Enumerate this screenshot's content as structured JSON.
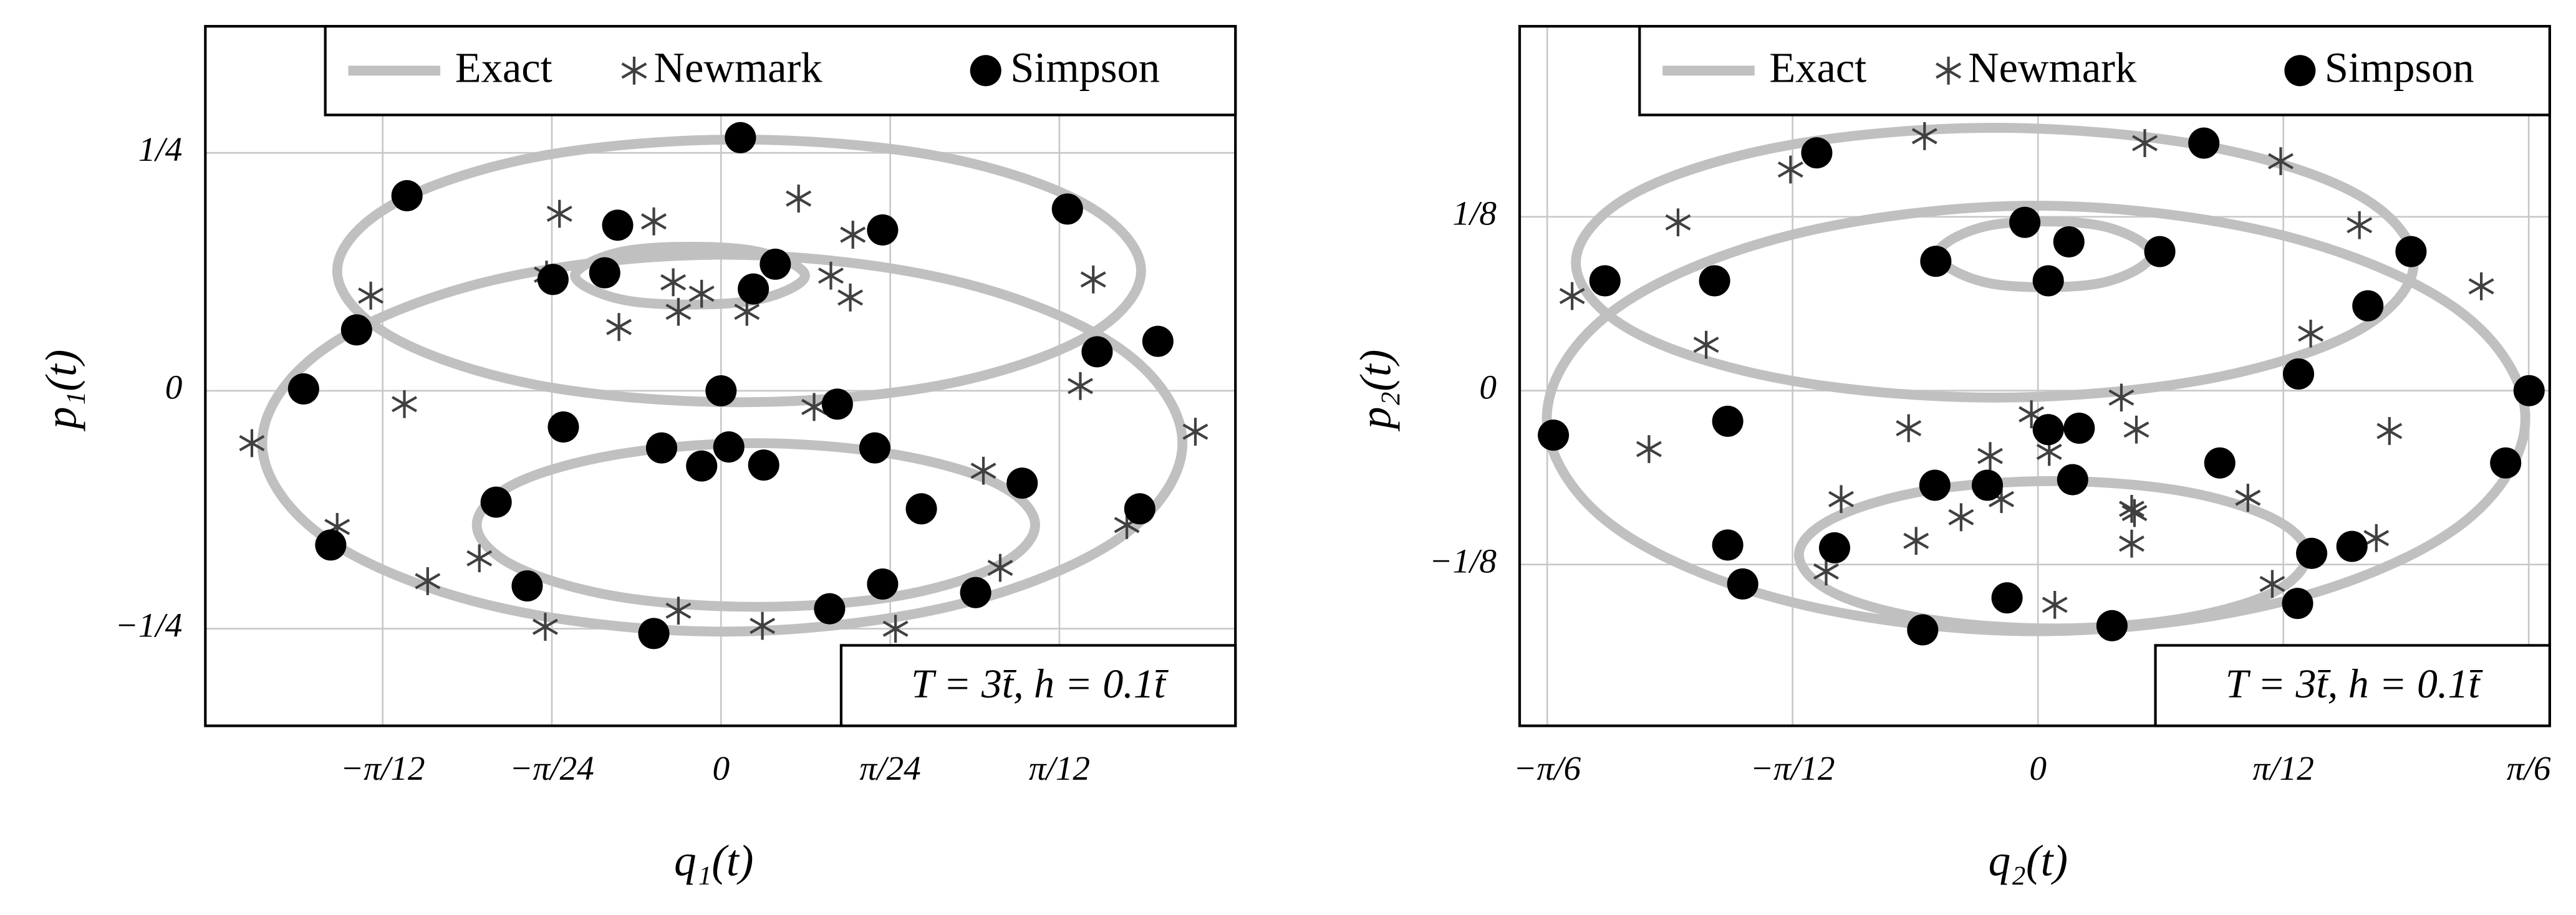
{
  "chart_data": [
    {
      "type": "line",
      "xlabel": "q₁(t)",
      "ylabel": "p₁(t)",
      "annotation": "T = 3t̄, h = 0.1t̄",
      "xlim": [
        -0.399,
        0.398
      ],
      "ylim": [
        -0.352,
        0.383
      ],
      "xticks": [
        {
          "value": -0.2618,
          "label": "−π/12"
        },
        {
          "value": -0.1309,
          "label": "−π/24"
        },
        0,
        {
          "value": 0.1309,
          "label": "π/24"
        },
        {
          "value": 0.2618,
          "label": "π/12"
        }
      ],
      "yticks": [
        {
          "value": -0.25,
          "label": "−1/4"
        },
        0,
        {
          "value": 0.25,
          "label": "1/4"
        }
      ],
      "grid": true,
      "legend": "upper right",
      "series": [
        {
          "name": "Exact",
          "color": "#c0c0c0",
          "marker": "line",
          "x": [
            0.325,
            0.283,
            0.17,
            0.014,
            -0.142,
            -0.255,
            -0.297,
            -0.255,
            -0.142,
            0.014,
            0.17,
            0.283,
            null,
            0.357,
            0.309,
            0.179,
            0.001,
            -0.177,
            -0.307,
            -0.355,
            -0.307,
            -0.177,
            0.001,
            0.179,
            0.309,
            null,
            0.243,
            0.214,
            0.135,
            0.027,
            -0.081,
            -0.16,
            -0.189,
            -0.16,
            -0.081,
            0.027,
            0.135,
            0.214,
            null,
            0.065,
            0.021,
            -0.069,
            -0.113,
            -0.069,
            0.021
          ],
          "values": [
            0.126,
            0.195,
            0.246,
            0.264,
            0.246,
            0.195,
            0.126,
            0.057,
            0.006,
            -0.012,
            0.006,
            0.057,
            null,
            -0.055,
            0.044,
            0.116,
            0.143,
            0.116,
            0.044,
            -0.055,
            -0.154,
            -0.226,
            -0.253,
            -0.226,
            -0.154,
            null,
            -0.141,
            -0.098,
            -0.067,
            -0.055,
            -0.067,
            -0.098,
            -0.141,
            -0.184,
            -0.216,
            -0.227,
            -0.216,
            -0.184,
            null,
            0.121,
            0.148,
            0.148,
            0.121,
            0.094,
            0.094
          ]
        },
        {
          "name": "Newmark",
          "color": "#404040",
          "marker": "asterisk",
          "x": [
            -0.125,
            -0.052,
            0.06,
            0.102,
            -0.135,
            -0.037,
            -0.015,
            0.085,
            0.1,
            -0.033,
            0.02,
            -0.079,
            -0.271,
            0.288,
            0.278,
            -0.245,
            0.072,
            -0.363,
            0.367,
            0.203,
            -0.297,
            -0.187,
            -0.227,
            0.314,
            0.216,
            -0.136,
            -0.033,
            0.032,
            0.135
          ],
          "values": [
            0.186,
            0.178,
            0.202,
            0.164,
            0.122,
            0.114,
            0.102,
            0.121,
            0.098,
            0.083,
            0.083,
            0.067,
            0.1,
            0.117,
            0.005,
            -0.014,
            -0.017,
            -0.055,
            -0.043,
            -0.084,
            -0.143,
            -0.176,
            -0.2,
            -0.141,
            -0.186,
            -0.248,
            -0.231,
            -0.247,
            -0.25
          ]
        },
        {
          "name": "Simpson",
          "color": "#000000",
          "marker": "circle",
          "x": [
            0.015,
            -0.243,
            0.268,
            -0.08,
            0.125,
            0.042,
            -0.09,
            -0.13,
            0.025,
            -0.282,
            0.338,
            0.291,
            -0.323,
            0,
            0.09,
            -0.122,
            -0.046,
            0.006,
            -0.015,
            0.033,
            0.119,
            0.233,
            -0.174,
            0.155,
            0.324,
            -0.302,
            -0.15,
            0.125,
            0.197,
            0.084,
            -0.052
          ],
          "values": [
            0.266,
            0.205,
            0.191,
            0.174,
            0.169,
            0.133,
            0.124,
            0.117,
            0.107,
            0.064,
            0.052,
            0.041,
            0.002,
            0,
            -0.014,
            -0.038,
            -0.06,
            -0.059,
            -0.079,
            -0.078,
            -0.06,
            -0.097,
            -0.117,
            -0.124,
            -0.124,
            -0.162,
            -0.205,
            -0.203,
            -0.212,
            -0.229,
            -0.255
          ]
        }
      ]
    },
    {
      "type": "line",
      "xlabel": "q₂(t)",
      "ylabel": "p₂(t)",
      "annotation": "T = 3t̄, h = 0.1t̄",
      "xlim": [
        -0.553,
        0.546
      ],
      "ylim": [
        -0.241,
        0.262
      ],
      "xticks": [
        {
          "value": -0.5236,
          "label": "−π/6"
        },
        {
          "value": -0.2618,
          "label": "−π/12"
        },
        0,
        {
          "value": 0.2618,
          "label": "π/12"
        },
        {
          "value": 0.5236,
          "label": "π/6"
        }
      ],
      "yticks": [
        {
          "value": -0.125,
          "label": "−1/8"
        },
        0,
        {
          "value": 0.125,
          "label": "1/8"
        }
      ],
      "grid": true,
      "legend": "upper right",
      "series": [
        {
          "name": "Exact",
          "color": "#c0c0c0",
          "marker": "line",
          "x": [
            0.401,
            0.341,
            0.178,
            -0.046,
            -0.27,
            -0.433,
            -0.493,
            -0.433,
            -0.27,
            -0.046,
            0.178,
            0.341,
            null,
            0.52,
            0.45,
            0.259,
            -0.002,
            -0.263,
            -0.454,
            -0.524,
            -0.454,
            -0.263,
            -0.002,
            0.259,
            0.45,
            null,
            0.287,
            0.251,
            0.152,
            0.016,
            -0.12,
            -0.219,
            -0.255,
            -0.219,
            -0.12,
            0.016,
            0.152,
            0.251,
            null,
            0.121,
            0.064,
            -0.05,
            -0.107,
            -0.05,
            0.064
          ],
          "values": [
            0.092,
            0.141,
            0.176,
            0.189,
            0.176,
            0.141,
            0.092,
            0.043,
            0.008,
            -0.005,
            0.008,
            0.043,
            null,
            -0.02,
            0.057,
            0.112,
            0.133,
            0.112,
            0.057,
            -0.02,
            -0.097,
            -0.152,
            -0.173,
            -0.152,
            -0.097,
            null,
            -0.118,
            -0.092,
            -0.072,
            -0.065,
            -0.072,
            -0.092,
            -0.118,
            -0.145,
            -0.164,
            -0.171,
            -0.164,
            -0.145,
            null,
            0.098,
            0.119,
            0.119,
            0.098,
            0.077,
            0.077
          ]
        },
        {
          "name": "Newmark",
          "color": "#404040",
          "marker": "asterisk",
          "x": [
            -0.264,
            -0.121,
            0.114,
            0.259,
            -0.384,
            0.343,
            -0.497,
            0.473,
            -0.354,
            0.291,
            0.089,
            -0.007,
            -0.138,
            0.105,
            0.375,
            -0.415,
            -0.051,
            0.012,
            -0.21,
            -0.039,
            -0.082,
            0.1,
            0.103,
            0.224,
            -0.13,
            0.1,
            0.361,
            -0.226,
            0.25,
            0.018
          ],
          "values": [
            0.159,
            0.183,
            0.178,
            0.165,
            0.121,
            0.119,
            0.068,
            0.075,
            0.033,
            0.041,
            -0.005,
            -0.017,
            -0.027,
            -0.028,
            -0.029,
            -0.042,
            -0.047,
            -0.044,
            -0.078,
            -0.078,
            -0.091,
            -0.085,
            -0.088,
            -0.077,
            -0.108,
            -0.11,
            -0.106,
            -0.13,
            -0.139,
            -0.154
          ]
        },
        {
          "name": "Simpson",
          "color": "#000000",
          "marker": "circle",
          "x": [
            -0.236,
            0.177,
            -0.014,
            0.033,
            -0.109,
            0.13,
            0.398,
            -0.462,
            -0.345,
            0.011,
            0.352,
            0.278,
            0.524,
            -0.517,
            -0.331,
            0.011,
            0.044,
            0.194,
            0.499,
            -0.11,
            -0.054,
            0.037,
            -0.331,
            -0.217,
            0.292,
            0.335,
            -0.315,
            -0.033,
            0.277,
            -0.123,
            0.079
          ],
          "values": [
            0.171,
            0.178,
            0.121,
            0.107,
            0.093,
            0.1,
            0.1,
            0.079,
            0.079,
            0.079,
            0.061,
            0.012,
            0,
            -0.032,
            -0.022,
            -0.028,
            -0.027,
            -0.052,
            -0.052,
            -0.068,
            -0.068,
            -0.064,
            -0.111,
            -0.113,
            -0.117,
            -0.112,
            -0.139,
            -0.149,
            -0.153,
            -0.172,
            -0.169
          ]
        }
      ]
    }
  ]
}
